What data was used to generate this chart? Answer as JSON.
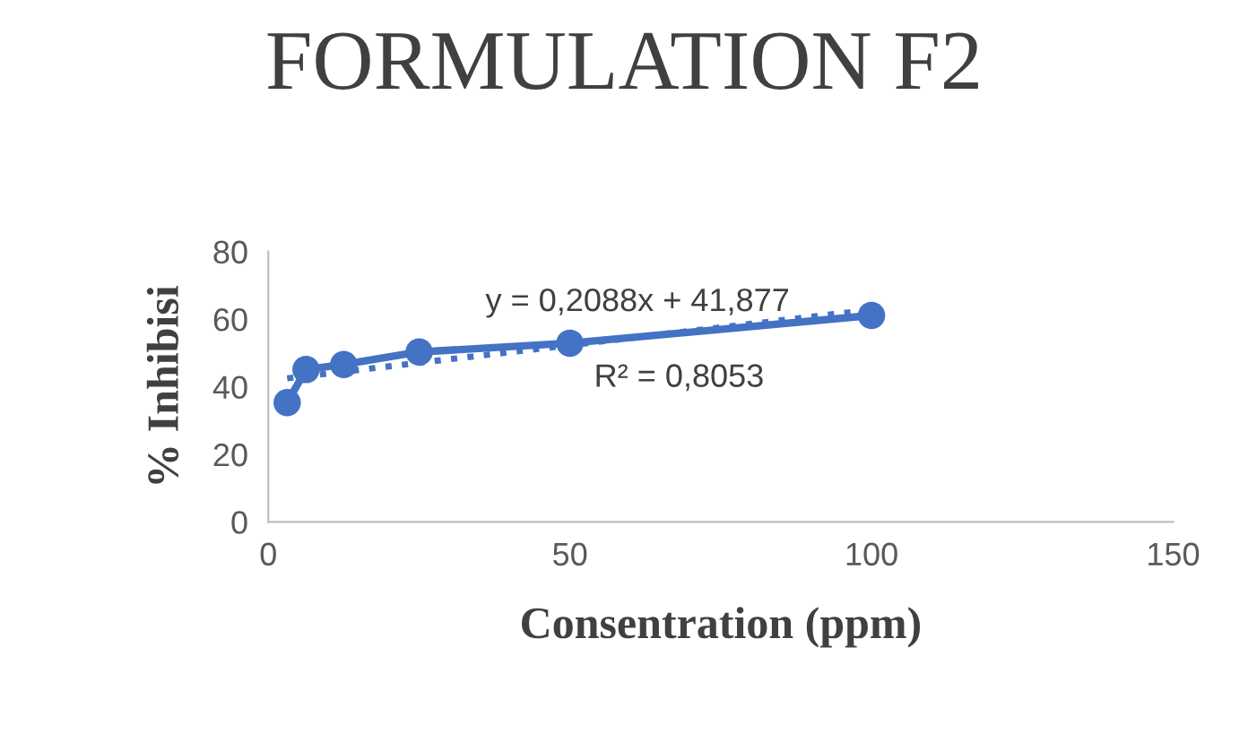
{
  "chart_data": {
    "type": "line",
    "title": "FORMULATION F2",
    "xlabel": "Consentration (ppm)",
    "ylabel": "% Inhibisi",
    "xlim": [
      0,
      150
    ],
    "xticks": [
      0,
      50,
      100,
      150
    ],
    "ylim": [
      0,
      80
    ],
    "yticks": [
      0,
      20,
      40,
      60,
      80
    ],
    "grid": false,
    "legend": false,
    "series": [
      {
        "color": "#4472c4",
        "x": [
          3.125,
          6.25,
          12.5,
          25,
          50,
          100
        ],
        "values": [
          35.3,
          45.1,
          46.6,
          50.3,
          52.9,
          61.1
        ],
        "marker": "circle",
        "line_style": "solid"
      },
      {
        "color": "#4472c4",
        "x": [
          3.125,
          100
        ],
        "values": [
          42.5,
          62.8
        ],
        "marker": "none",
        "line_style": "dotted"
      }
    ],
    "annotations": [
      "y = 0,2088x + 41,877",
      "R² = 0,8053"
    ]
  }
}
